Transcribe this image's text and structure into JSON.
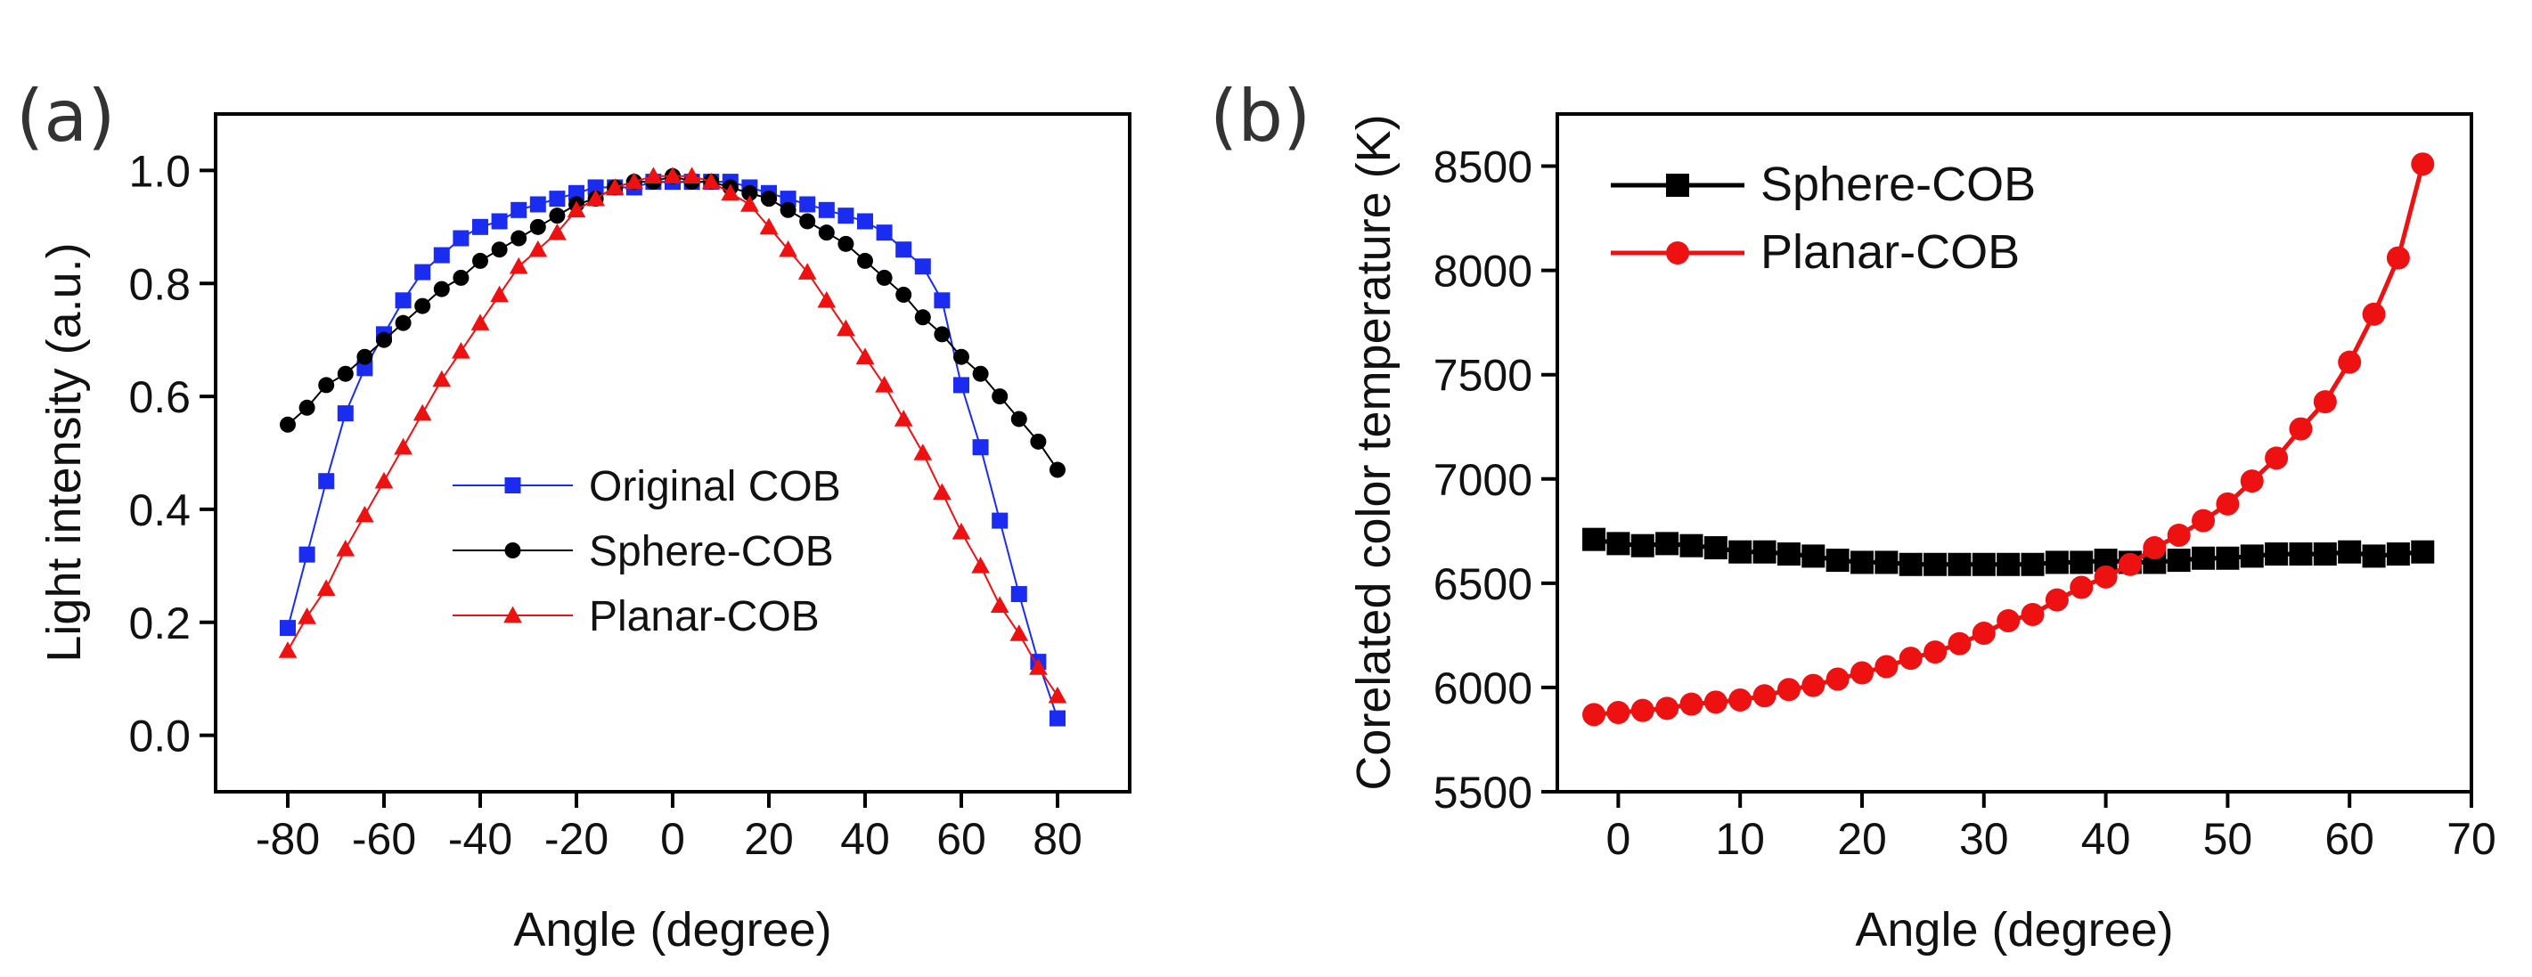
{
  "chart_data": [
    {
      "panel_label": "(a)",
      "type": "line",
      "xlabel": "Angle (degree)",
      "ylabel": "Light intensity (a.u.)",
      "xlim": [
        -95,
        95
      ],
      "ylim": [
        -0.1,
        1.1
      ],
      "xticks": [
        -80,
        -60,
        -40,
        -20,
        0,
        20,
        40,
        60,
        80
      ],
      "xtick_labels": [
        "-80",
        "-60",
        "-40",
        "-20",
        "0",
        "20",
        "40",
        "60",
        "80"
      ],
      "yticks": [
        0.0,
        0.2,
        0.4,
        0.6,
        0.8,
        1.0
      ],
      "ytick_labels": [
        "0.0",
        "0.2",
        "0.4",
        "0.6",
        "0.8",
        "1.0"
      ],
      "legend_position": "center-bottom",
      "series": [
        {
          "name": "Original COB",
          "color": "#1a2cf0",
          "marker": "square",
          "x": [
            -80,
            -76,
            -72,
            -68,
            -64,
            -60,
            -56,
            -52,
            -48,
            -44,
            -40,
            -36,
            -32,
            -28,
            -24,
            -20,
            -16,
            -12,
            -8,
            -4,
            0,
            4,
            8,
            12,
            16,
            20,
            24,
            28,
            32,
            36,
            40,
            44,
            48,
            52,
            56,
            60,
            64,
            68,
            72,
            76,
            80
          ],
          "y": [
            0.19,
            0.32,
            0.45,
            0.57,
            0.65,
            0.71,
            0.77,
            0.82,
            0.85,
            0.88,
            0.9,
            0.91,
            0.93,
            0.94,
            0.95,
            0.96,
            0.97,
            0.97,
            0.97,
            0.98,
            0.98,
            0.98,
            0.98,
            0.98,
            0.97,
            0.96,
            0.95,
            0.94,
            0.93,
            0.92,
            0.91,
            0.89,
            0.86,
            0.83,
            0.77,
            0.62,
            0.51,
            0.38,
            0.25,
            0.13,
            0.03
          ]
        },
        {
          "name": "Sphere-COB",
          "color": "#000000",
          "marker": "circle",
          "x": [
            -80,
            -76,
            -72,
            -68,
            -64,
            -60,
            -56,
            -52,
            -48,
            -44,
            -40,
            -36,
            -32,
            -28,
            -24,
            -20,
            -16,
            -12,
            -8,
            -4,
            0,
            4,
            8,
            12,
            16,
            20,
            24,
            28,
            32,
            36,
            40,
            44,
            48,
            52,
            56,
            60,
            64,
            68,
            72,
            76,
            80
          ],
          "y": [
            0.55,
            0.58,
            0.62,
            0.64,
            0.67,
            0.7,
            0.73,
            0.76,
            0.79,
            0.81,
            0.84,
            0.86,
            0.88,
            0.9,
            0.92,
            0.94,
            0.95,
            0.97,
            0.98,
            0.98,
            0.99,
            0.98,
            0.98,
            0.97,
            0.96,
            0.95,
            0.93,
            0.91,
            0.89,
            0.87,
            0.84,
            0.81,
            0.78,
            0.74,
            0.71,
            0.67,
            0.64,
            0.6,
            0.56,
            0.52,
            0.47
          ]
        },
        {
          "name": "Planar-COB",
          "color": "#ee1111",
          "marker": "triangle",
          "x": [
            -80,
            -76,
            -72,
            -68,
            -64,
            -60,
            -56,
            -52,
            -48,
            -44,
            -40,
            -36,
            -32,
            -28,
            -24,
            -20,
            -16,
            -12,
            -8,
            -4,
            0,
            4,
            8,
            12,
            16,
            20,
            24,
            28,
            32,
            36,
            40,
            44,
            48,
            52,
            56,
            60,
            64,
            68,
            72,
            76,
            80
          ],
          "y": [
            0.15,
            0.21,
            0.26,
            0.33,
            0.39,
            0.45,
            0.51,
            0.57,
            0.63,
            0.68,
            0.73,
            0.78,
            0.83,
            0.86,
            0.89,
            0.93,
            0.95,
            0.97,
            0.98,
            0.99,
            0.99,
            0.99,
            0.98,
            0.96,
            0.94,
            0.9,
            0.86,
            0.82,
            0.77,
            0.72,
            0.67,
            0.62,
            0.56,
            0.5,
            0.43,
            0.36,
            0.3,
            0.23,
            0.18,
            0.12,
            0.07
          ]
        }
      ]
    },
    {
      "panel_label": "(b)",
      "type": "line",
      "xlabel": "Angle (degree)",
      "ylabel": "Corelated color temperature (K)",
      "xlim": [
        -5,
        70
      ],
      "ylim": [
        5500,
        8750
      ],
      "xticks": [
        0,
        10,
        20,
        30,
        40,
        50,
        60,
        70
      ],
      "xtick_labels": [
        "0",
        "10",
        "20",
        "30",
        "40",
        "50",
        "60",
        "70"
      ],
      "yticks": [
        5500,
        6000,
        6500,
        7000,
        7500,
        8000,
        8500
      ],
      "ytick_labels": [
        "5500",
        "6000",
        "6500",
        "7000",
        "7500",
        "8000",
        "8500"
      ],
      "legend_position": "top-left",
      "series": [
        {
          "name": "Sphere-COB",
          "color": "#000000",
          "marker": "square",
          "x": [
            -2,
            0,
            2,
            4,
            6,
            8,
            10,
            12,
            14,
            16,
            18,
            20,
            22,
            24,
            26,
            28,
            30,
            32,
            34,
            36,
            38,
            40,
            42,
            44,
            46,
            48,
            50,
            52,
            54,
            56,
            58,
            60,
            62,
            64,
            66
          ],
          "y": [
            6710,
            6690,
            6680,
            6690,
            6680,
            6670,
            6650,
            6650,
            6640,
            6630,
            6610,
            6600,
            6600,
            6590,
            6590,
            6590,
            6590,
            6590,
            6590,
            6600,
            6600,
            6610,
            6600,
            6600,
            6610,
            6620,
            6620,
            6630,
            6640,
            6640,
            6640,
            6650,
            6630,
            6640,
            6650
          ]
        },
        {
          "name": "Planar-COB",
          "color": "#ee1111",
          "marker": "circle",
          "x": [
            -2,
            0,
            2,
            4,
            6,
            8,
            10,
            12,
            14,
            16,
            18,
            20,
            22,
            24,
            26,
            28,
            30,
            32,
            34,
            36,
            38,
            40,
            42,
            44,
            46,
            48,
            50,
            52,
            54,
            56,
            58,
            60,
            62,
            64,
            66
          ],
          "y": [
            5870,
            5880,
            5890,
            5900,
            5920,
            5930,
            5940,
            5960,
            5990,
            6010,
            6040,
            6070,
            6100,
            6140,
            6170,
            6210,
            6260,
            6320,
            6350,
            6420,
            6480,
            6530,
            6590,
            6670,
            6730,
            6800,
            6880,
            6990,
            7100,
            7240,
            7370,
            7560,
            7790,
            8060,
            8510
          ]
        }
      ]
    }
  ]
}
